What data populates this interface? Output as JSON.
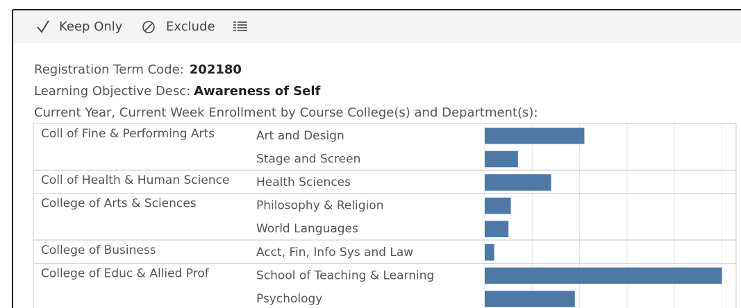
{
  "toolbar": {
    "keep_only": "Keep Only",
    "exclude": "Exclude"
  },
  "tooltip": {
    "lines": [
      {
        "label": "Registration Term Code:",
        "value": "202180"
      },
      {
        "label": "Learning Objective Desc:",
        "value": "Awareness of Self"
      }
    ]
  },
  "chart_data": {
    "type": "bar",
    "title": "Current Year, Current Week Enrollment by Course College(s) and Department(s):",
    "colleges": [
      "Coll of Fine & Performing Arts",
      null,
      "Coll of Health & Human Science",
      "College of Arts & Sciences",
      null,
      "College of Business",
      "College of Educ & Allied Prof",
      null
    ],
    "categories": [
      "Art and Design",
      "Stage and Screen",
      "Health Sciences",
      "Philosophy & Religion",
      "World Languages",
      "Acct, Fin, Info Sys and Law",
      "School of Teaching & Learning",
      "Psychology"
    ],
    "values": [
      21,
      7,
      14,
      5.5,
      5,
      2,
      50,
      19
    ],
    "color": "#4e79a7",
    "xlim": [
      0,
      53
    ],
    "xticks": [
      0,
      10,
      20,
      30,
      40,
      50
    ],
    "grid": true
  }
}
